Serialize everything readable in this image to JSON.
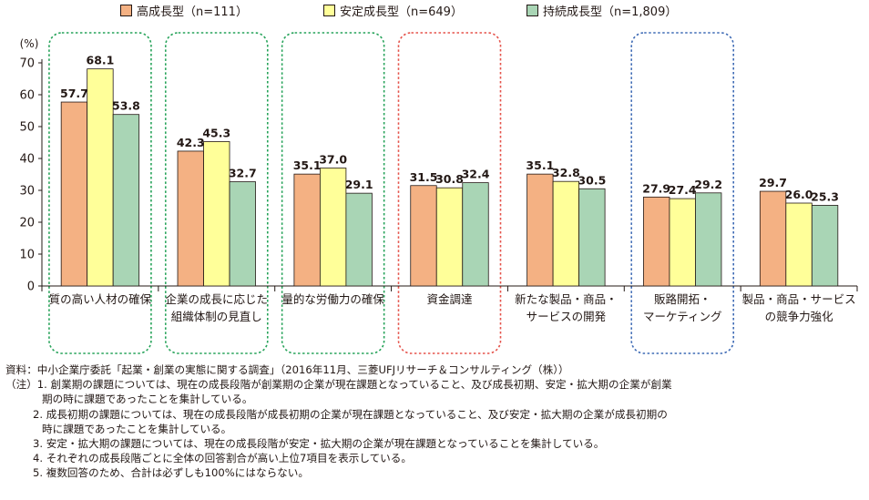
{
  "chart_data": {
    "type": "bar",
    "y_unit_label": "(%)",
    "ylim": [
      0,
      70
    ],
    "yticks": [
      0,
      10,
      20,
      30,
      40,
      50,
      60,
      70
    ],
    "categories": [
      "質の高い人材の確保",
      "企業の成長に応じた\n組織体制の見直し",
      "量的な労働力の確保",
      "資金調達",
      "新たな製品・商品・\nサービスの開発",
      "販路開拓・\nマーケティング",
      "製品・商品・サービス\nの競争力強化"
    ],
    "series": [
      {
        "name": "高成長型（n=111）",
        "color": "#f4b183",
        "values": [
          57.7,
          42.3,
          35.1,
          31.5,
          35.1,
          27.9,
          29.7
        ]
      },
      {
        "name": "安定成長型（n=649）",
        "color": "#ffff99",
        "values": [
          68.1,
          45.3,
          37.0,
          30.8,
          32.8,
          27.4,
          26.0
        ]
      },
      {
        "name": "持続成長型（n=1,809）",
        "color": "#a9d5b5",
        "values": [
          53.8,
          32.7,
          29.1,
          32.4,
          30.5,
          29.2,
          25.3
        ]
      }
    ],
    "value_labels": [
      [
        "57.7",
        "42.3",
        "35.1",
        "31.5",
        "35.1",
        "27.9",
        "29.7"
      ],
      [
        "68.1",
        "45.3",
        "37.0",
        "30.8",
        "32.8",
        "27.4",
        "26.0"
      ],
      [
        "53.8",
        "32.7",
        "29.1",
        "32.4",
        "30.5",
        "29.2",
        "25.3"
      ]
    ],
    "highlights": [
      {
        "category_index": 0,
        "color": "#27a35a"
      },
      {
        "category_index": 1,
        "color": "#27a35a"
      },
      {
        "category_index": 2,
        "color": "#27a35a"
      },
      {
        "category_index": 3,
        "color": "#e5534b"
      },
      {
        "category_index": 5,
        "color": "#3f6bb5"
      }
    ],
    "grid": false,
    "legend_position": "top"
  },
  "notes": {
    "source": "資料：中小企業庁委託「起業・創業の実態に関する調査」（2016年11月、三菱UFJリサーチ＆コンサルティング（株））",
    "n1a": "（注）1. 創業期の課題については、現在の成長段階が創業期の企業が現在課題となっていること、及び成長初期、安定・拡大期の企業が創業",
    "n1b": "期の時に課題であったことを集計している。",
    "n2a": "2. 成長初期の課題については、現在の成長段階が成長初期の企業が現在課題となっていること、及び安定・拡大期の企業が成長初期の",
    "n2b": "時に課題であったことを集計している。",
    "n3": "3. 安定・拡大期の課題については、現在の成長段階が安定・拡大期の企業が現在課題となっていることを集計している。",
    "n4": "4. それぞれの成長段階ごとに全体の回答割合が高い上位7項目を表示している。",
    "n5": "5. 複数回答のため、合計は必ずしも100%にはならない。"
  }
}
